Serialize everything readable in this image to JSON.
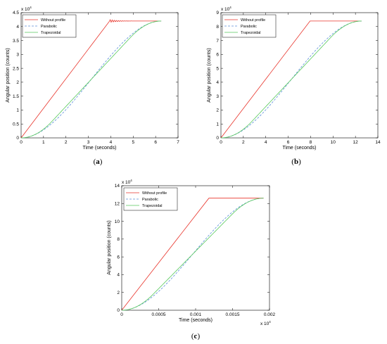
{
  "colors": {
    "without": "#e8332a",
    "parabolic": "#5b8fd9",
    "trapezoidal": "#57c95b"
  },
  "chart_data": [
    {
      "type": "line",
      "caption": "(a)",
      "xlabel": "Time (seconds)",
      "ylabel": "Angular position (counts)",
      "xlim": [
        0,
        7
      ],
      "ylim": [
        0,
        4.5
      ],
      "xticks": [
        "0",
        "1",
        "2",
        "3",
        "4",
        "5",
        "6",
        "7"
      ],
      "yticks": [
        "0",
        "0.5",
        "1",
        "1.5",
        "2",
        "2.5",
        "3",
        "3.5",
        "4",
        "4.5"
      ],
      "y_multiplier": {
        "base": "x 10",
        "exp": "4"
      },
      "x_multiplier": null,
      "legend": [
        "Without profile",
        "Parabolic",
        "Trapezoidal"
      ],
      "legend_position": "top-left",
      "target": 4.2,
      "ramp_end": 3.95,
      "profile_end": 6.25,
      "oscillation": true
    },
    {
      "type": "line",
      "caption": "(b)",
      "xlabel": "Time (seconds)",
      "ylabel": "Angular position (counts)",
      "xlim": [
        0,
        14
      ],
      "ylim": [
        0,
        9
      ],
      "xticks": [
        "0",
        "2",
        "4",
        "6",
        "8",
        "10",
        "12",
        "14"
      ],
      "yticks": [
        "0",
        "1",
        "2",
        "3",
        "4",
        "5",
        "6",
        "7",
        "8",
        "9"
      ],
      "y_multiplier": {
        "base": "x 10",
        "exp": "4"
      },
      "x_multiplier": null,
      "legend": [
        "Without profile",
        "Parabolic",
        "Trapezoidal"
      ],
      "legend_position": "top-left",
      "target": 8.4,
      "ramp_end": 7.95,
      "profile_end": 12.55,
      "oscillation": false
    },
    {
      "type": "line",
      "caption": "(c)",
      "xlabel": "Time (seconds)",
      "ylabel": "Angular position (counts)",
      "xlim": [
        0,
        0.002
      ],
      "ylim": [
        0,
        14
      ],
      "xticks": [
        "0",
        "0.0005",
        "0.001",
        "0.0015",
        "0.002"
      ],
      "yticks": [
        "0",
        "2",
        "4",
        "6",
        "8",
        "10",
        "12",
        "14"
      ],
      "y_multiplier": {
        "base": "x 10",
        "exp": "4"
      },
      "x_multiplier": {
        "base": "x 10",
        "exp": "4"
      },
      "legend": [
        "Without profile",
        "Parabolic",
        "Trapezoidal"
      ],
      "legend_position": "top-left",
      "target": 12.6,
      "ramp_end": 0.00118,
      "profile_end": 0.00192,
      "oscillation": false
    }
  ]
}
